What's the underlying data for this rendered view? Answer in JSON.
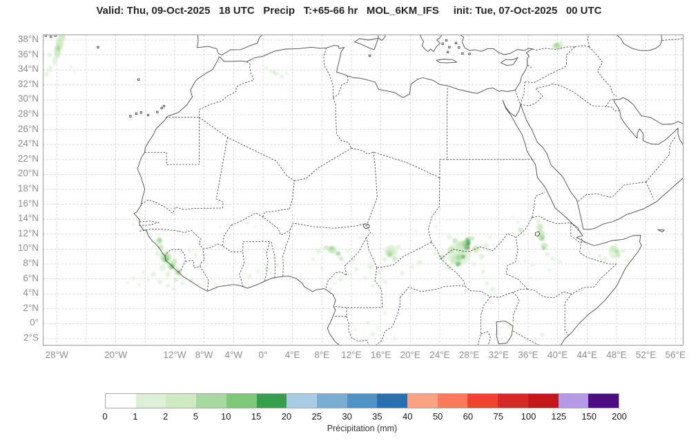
{
  "title": "Valid: Thu, 09-Oct-2025   18 UTC   Precip   T:+65-66 hr   MOL_6KM_IFS     init: Tue, 07-Oct-2025   00 UTC",
  "map": {
    "extent": {
      "lon_min": -29.9,
      "lon_max": 57.1,
      "lat_min": -2.93,
      "lat_max": 38.74
    },
    "grid": {
      "lon_start": -28,
      "lon_end": 56,
      "lon_step": 4,
      "lat_start": -2,
      "lat_end": 38,
      "lat_step": 2,
      "color": "#cfcfcf"
    },
    "frame_color": "#999999",
    "coast_color": "#474747",
    "border_color": "#3d3d3d",
    "x_ticks": [
      {
        "lon": -28,
        "label": "28°W"
      },
      {
        "lon": -20,
        "label": "20°W"
      },
      {
        "lon": -12,
        "label": "12°W"
      },
      {
        "lon": -8,
        "label": "8°W"
      },
      {
        "lon": -4,
        "label": "4°W"
      },
      {
        "lon": 0,
        "label": "0°"
      },
      {
        "lon": 4,
        "label": "4°E"
      },
      {
        "lon": 8,
        "label": "8°E"
      },
      {
        "lon": 12,
        "label": "12°E"
      },
      {
        "lon": 16,
        "label": "16°E"
      },
      {
        "lon": 20,
        "label": "20°E"
      },
      {
        "lon": 24,
        "label": "24°E"
      },
      {
        "lon": 28,
        "label": "28°E"
      },
      {
        "lon": 32,
        "label": "32°E"
      },
      {
        "lon": 36,
        "label": "36°E"
      },
      {
        "lon": 40,
        "label": "40°E"
      },
      {
        "lon": 44,
        "label": "44°E"
      },
      {
        "lon": 48,
        "label": "48°E"
      },
      {
        "lon": 52,
        "label": "52°E"
      },
      {
        "lon": 56,
        "label": "56°E"
      }
    ],
    "y_ticks": [
      {
        "lat": 38,
        "label": "38°N"
      },
      {
        "lat": 36,
        "label": "36°N"
      },
      {
        "lat": 34,
        "label": "34°N"
      },
      {
        "lat": 32,
        "label": "32°N"
      },
      {
        "lat": 30,
        "label": "30°N"
      },
      {
        "lat": 28,
        "label": "28°N"
      },
      {
        "lat": 26,
        "label": "26°N"
      },
      {
        "lat": 24,
        "label": "24°N"
      },
      {
        "lat": 22,
        "label": "22°N"
      },
      {
        "lat": 20,
        "label": "20°N"
      },
      {
        "lat": 18,
        "label": "18°N"
      },
      {
        "lat": 16,
        "label": "16°N"
      },
      {
        "lat": 14,
        "label": "14°N"
      },
      {
        "lat": 12,
        "label": "12°N"
      },
      {
        "lat": 10,
        "label": "10°N"
      },
      {
        "lat": 8,
        "label": "8°N"
      },
      {
        "lat": 6,
        "label": "6°N"
      },
      {
        "lat": 4,
        "label": "4°N"
      },
      {
        "lat": 2,
        "label": "2°N"
      },
      {
        "lat": 0,
        "label": "0°"
      },
      {
        "lat": -2,
        "label": "2°S"
      }
    ]
  },
  "colorbar": {
    "title": "Précipitation (mm)",
    "tick_labels": [
      "0",
      "1",
      "2",
      "5",
      "10",
      "15",
      "20",
      "25",
      "30",
      "35",
      "40",
      "50",
      "60",
      "75",
      "100",
      "125",
      "150",
      "200"
    ],
    "colors": [
      "#ffffff",
      "#dcf0d8",
      "#cfe9c3",
      "#a8d9a0",
      "#7cc878",
      "#379e4d",
      "#a9cbe4",
      "#7badd3",
      "#4f93c6",
      "#2970b1",
      "#fba285",
      "#fb7a5c",
      "#f0432f",
      "#d62a28",
      "#c5161b",
      "#b499e8",
      "#4c0c82"
    ]
  },
  "palette": {
    "p1": "#e2f2dc",
    "p2": "#cde9c1",
    "p3": "#a5d89d",
    "p4": "#78c474",
    "p5": "#3ca254",
    "blue": "#5b9bd5",
    "red": "#e03c2e"
  },
  "precip_blobs": [
    [
      -27.3,
      38.4,
      0.45,
      0.6,
      "p2"
    ],
    [
      -27.6,
      37.5,
      0.5,
      0.8,
      "p2"
    ],
    [
      -27.9,
      36.5,
      0.45,
      0.9,
      "p2"
    ],
    [
      -27.8,
      36.9,
      0.25,
      0.4,
      "p3"
    ],
    [
      -28.3,
      35.2,
      0.35,
      0.6,
      "p1"
    ],
    [
      -28.9,
      34.1,
      0.3,
      0.45,
      "p1"
    ],
    [
      -29.4,
      33.4,
      0.3,
      0.4,
      "p1"
    ],
    [
      -29.0,
      36.0,
      0.25,
      0.35,
      "p1"
    ],
    [
      -26.1,
      34.4,
      0.22,
      0.22,
      "p1"
    ],
    [
      -25.6,
      33.7,
      0.15,
      0.15,
      "p1"
    ],
    [
      0.4,
      34.3,
      0.25,
      0.2,
      "p1"
    ],
    [
      1.1,
      33.9,
      0.3,
      0.25,
      "p1"
    ],
    [
      1.8,
      33.5,
      0.35,
      0.3,
      "p1"
    ],
    [
      2.5,
      33.1,
      0.3,
      0.25,
      "p1"
    ],
    [
      1.5,
      33.7,
      0.2,
      0.2,
      "p2"
    ],
    [
      3.2,
      33.5,
      0.2,
      0.2,
      "p1"
    ],
    [
      -2.1,
      37.1,
      0.2,
      0.15,
      "p1"
    ],
    [
      40.0,
      37.2,
      0.7,
      0.5,
      "p2"
    ],
    [
      39.9,
      37.3,
      0.35,
      0.3,
      "p3"
    ],
    [
      40.5,
      37.6,
      0.3,
      0.25,
      "p1"
    ],
    [
      -16.6,
      15.9,
      0.15,
      0.15,
      "p1"
    ],
    [
      -16.7,
      14.8,
      0.2,
      0.2,
      "p1"
    ],
    [
      -16.9,
      13.8,
      0.22,
      0.2,
      "p1"
    ],
    [
      -16.4,
      12.9,
      0.2,
      0.2,
      "p1"
    ],
    [
      -15.9,
      12.2,
      0.3,
      0.25,
      "p1"
    ],
    [
      -17.6,
      13.3,
      0.2,
      0.2,
      "p1"
    ],
    [
      -3.4,
      14.0,
      0.2,
      0.15,
      "p1"
    ],
    [
      -2.1,
      13.5,
      0.25,
      0.2,
      "p1"
    ],
    [
      -1.1,
      13.0,
      0.2,
      0.15,
      "p1"
    ],
    [
      0.6,
      13.5,
      0.15,
      0.12,
      "p1"
    ],
    [
      -5.8,
      13.0,
      0.15,
      0.12,
      "p1"
    ],
    [
      -14.1,
      11.1,
      0.45,
      0.5,
      "p2"
    ],
    [
      -14.0,
      11.2,
      0.25,
      0.3,
      "p3"
    ],
    [
      -13.9,
      10.2,
      0.4,
      0.4,
      "p2"
    ],
    [
      -14.3,
      9.4,
      0.35,
      0.4,
      "p1"
    ],
    [
      -13.2,
      8.9,
      0.75,
      0.8,
      "p2"
    ],
    [
      -13.2,
      8.8,
      0.45,
      0.5,
      "p3"
    ],
    [
      -13.1,
      8.6,
      0.25,
      0.3,
      "p4"
    ],
    [
      -12.4,
      7.8,
      0.6,
      0.6,
      "p2"
    ],
    [
      -12.35,
      7.7,
      0.3,
      0.35,
      "p4"
    ],
    [
      -12.0,
      8.4,
      0.35,
      0.35,
      "p2"
    ],
    [
      -11.5,
      6.9,
      0.5,
      0.5,
      "p2"
    ],
    [
      -11.45,
      6.85,
      0.25,
      0.25,
      "p3"
    ],
    [
      -12.9,
      6.7,
      0.35,
      0.4,
      "p1"
    ],
    [
      -13.6,
      7.5,
      0.4,
      0.45,
      "p1"
    ],
    [
      -14.9,
      6.6,
      0.4,
      0.35,
      "p1"
    ],
    [
      -15.6,
      5.9,
      0.3,
      0.3,
      "p1"
    ],
    [
      -14.0,
      5.6,
      0.35,
      0.3,
      "p1"
    ],
    [
      -12.9,
      5.1,
      0.3,
      0.25,
      "p1"
    ],
    [
      -12.1,
      4.7,
      0.3,
      0.25,
      "p1"
    ],
    [
      -16.3,
      6.9,
      0.25,
      0.2,
      "p1"
    ],
    [
      -17.6,
      6.1,
      0.3,
      0.25,
      "p1"
    ],
    [
      -18.4,
      5.5,
      0.25,
      0.2,
      "p1"
    ],
    [
      -16.8,
      5.2,
      0.25,
      0.2,
      "p1"
    ],
    [
      -10.9,
      5.4,
      0.3,
      0.25,
      "p1"
    ],
    [
      -11.8,
      5.9,
      0.28,
      0.25,
      "p2"
    ],
    [
      -10.0,
      9.8,
      0.3,
      0.3,
      "p1"
    ],
    [
      -9.2,
      9.2,
      0.25,
      0.25,
      "p1"
    ],
    [
      -9.7,
      5.9,
      0.3,
      0.25,
      "p1"
    ],
    [
      -8.7,
      5.3,
      0.25,
      0.2,
      "p1"
    ],
    [
      -7.5,
      5.6,
      0.2,
      0.18,
      "p1"
    ],
    [
      -6.4,
      5.2,
      0.25,
      0.2,
      "p1"
    ],
    [
      -5.3,
      5.6,
      0.2,
      0.18,
      "p1"
    ],
    [
      -4.2,
      5.8,
      0.2,
      0.15,
      "p1"
    ],
    [
      -1.8,
      6.4,
      0.3,
      0.25,
      "p1"
    ],
    [
      -0.7,
      7.0,
      0.25,
      0.22,
      "p1"
    ],
    [
      0.4,
      7.4,
      0.3,
      0.25,
      "p1"
    ],
    [
      1.1,
      6.8,
      0.2,
      0.18,
      "p1"
    ],
    [
      2.0,
      7.9,
      0.3,
      0.25,
      "p1"
    ],
    [
      1.5,
      8.9,
      0.25,
      0.2,
      "p1"
    ],
    [
      0.3,
      9.8,
      0.2,
      0.15,
      "p1"
    ],
    [
      7.6,
      9.7,
      0.4,
      0.35,
      "p1"
    ],
    [
      8.6,
      10.2,
      0.35,
      0.3,
      "p2"
    ],
    [
      9.4,
      9.9,
      0.6,
      0.5,
      "p2"
    ],
    [
      9.3,
      10.1,
      0.3,
      0.3,
      "p3"
    ],
    [
      10.2,
      9.4,
      0.35,
      0.3,
      "p3"
    ],
    [
      10.6,
      8.7,
      0.3,
      0.3,
      "p2"
    ],
    [
      11.5,
      9.8,
      0.3,
      0.25,
      "p1"
    ],
    [
      12.3,
      8.5,
      0.3,
      0.25,
      "p1"
    ],
    [
      6.8,
      8.6,
      0.25,
      0.2,
      "p1"
    ],
    [
      8.0,
      7.4,
      0.25,
      0.2,
      "p1"
    ],
    [
      13.2,
      11.5,
      0.25,
      0.2,
      "p1"
    ],
    [
      9.1,
      4.6,
      0.3,
      0.25,
      "p1"
    ],
    [
      9.7,
      5.4,
      0.25,
      0.2,
      "p1"
    ],
    [
      10.5,
      5.9,
      0.3,
      0.25,
      "p1"
    ],
    [
      11.7,
      6.6,
      0.3,
      0.25,
      "p1"
    ],
    [
      12.7,
      7.3,
      0.3,
      0.3,
      "p1"
    ],
    [
      17.4,
      9.7,
      0.95,
      0.85,
      "p1"
    ],
    [
      17.3,
      9.6,
      0.6,
      0.55,
      "p2"
    ],
    [
      17.2,
      9.3,
      0.35,
      0.35,
      "p3"
    ],
    [
      17.9,
      8.7,
      0.35,
      0.3,
      "p2"
    ],
    [
      16.5,
      8.6,
      0.3,
      0.3,
      "p1"
    ],
    [
      18.4,
      10.3,
      0.35,
      0.3,
      "p1"
    ],
    [
      15.8,
      6.9,
      0.35,
      0.3,
      "p1"
    ],
    [
      14.6,
      7.6,
      0.4,
      0.3,
      "p1"
    ],
    [
      13.9,
      6.1,
      0.3,
      0.25,
      "p1"
    ],
    [
      14.9,
      5.1,
      0.25,
      0.2,
      "p1"
    ],
    [
      16.6,
      5.6,
      0.3,
      0.25,
      "p1"
    ],
    [
      18.9,
      6.8,
      0.3,
      0.3,
      "p1"
    ],
    [
      20.2,
      7.6,
      0.35,
      0.3,
      "p1"
    ],
    [
      21.3,
      8.2,
      0.4,
      0.35,
      "p1"
    ],
    [
      23.4,
      13.0,
      0.25,
      0.2,
      "p1"
    ],
    [
      20.8,
      12.4,
      0.2,
      0.15,
      "p1"
    ],
    [
      18.8,
      12.0,
      0.2,
      0.15,
      "p1"
    ],
    [
      26.6,
      9.3,
      1.7,
      1.5,
      "p1"
    ],
    [
      26.3,
      8.6,
      0.8,
      0.7,
      "p2"
    ],
    [
      26.9,
      10.2,
      0.7,
      0.9,
      "p2"
    ],
    [
      27.5,
      10.7,
      0.5,
      0.5,
      "p3"
    ],
    [
      27.8,
      11.2,
      0.35,
      0.35,
      "p4"
    ],
    [
      27.7,
      10.3,
      0.4,
      0.45,
      "p4"
    ],
    [
      27.9,
      10.8,
      0.25,
      0.3,
      "p5"
    ],
    [
      26.6,
      8.9,
      0.4,
      0.4,
      "p3"
    ],
    [
      26.5,
      8.0,
      0.35,
      0.3,
      "p4"
    ],
    [
      27.2,
      9.0,
      0.3,
      0.3,
      "p4"
    ],
    [
      28.3,
      11.4,
      0.4,
      0.35,
      "p2"
    ],
    [
      28.9,
      10.0,
      0.5,
      0.5,
      "p2"
    ],
    [
      29.7,
      9.0,
      0.4,
      0.4,
      "p1"
    ],
    [
      30.3,
      10.5,
      0.4,
      0.35,
      "p1"
    ],
    [
      25.2,
      7.6,
      0.4,
      0.35,
      "p1"
    ],
    [
      24.3,
      8.9,
      0.45,
      0.4,
      "p2"
    ],
    [
      23.4,
      9.4,
      0.3,
      0.3,
      "p1"
    ],
    [
      25.6,
      9.9,
      0.5,
      0.5,
      "p2"
    ],
    [
      26.1,
      11.1,
      0.4,
      0.4,
      "p2"
    ],
    [
      25.3,
      11.6,
      0.3,
      0.3,
      "p1"
    ],
    [
      28.6,
      8.0,
      0.35,
      0.3,
      "p1"
    ],
    [
      29.9,
      7.0,
      0.3,
      0.25,
      "p1"
    ],
    [
      30.8,
      11.6,
      0.3,
      0.25,
      "p1"
    ],
    [
      27.9,
      10.15,
      0.14,
      0.14,
      "red"
    ],
    [
      27.55,
      10.05,
      0.12,
      0.12,
      "blue"
    ],
    [
      28.0,
      11.25,
      0.1,
      0.1,
      "blue"
    ],
    [
      27.15,
      8.95,
      0.11,
      0.11,
      "blue"
    ],
    [
      26.4,
      7.75,
      0.1,
      0.1,
      "blue"
    ],
    [
      27.25,
      9.05,
      0.08,
      0.08,
      "red"
    ],
    [
      31.2,
      4.6,
      0.4,
      0.35,
      "p1"
    ],
    [
      30.4,
      5.4,
      0.3,
      0.25,
      "p1"
    ],
    [
      33.5,
      -0.4,
      0.3,
      0.3,
      "p1"
    ],
    [
      34.1,
      0.4,
      0.2,
      0.2,
      "p1"
    ],
    [
      31.8,
      -1.2,
      0.25,
      0.2,
      "p1"
    ],
    [
      14.2,
      0.1,
      0.3,
      0.25,
      "p1"
    ],
    [
      14.9,
      -1.4,
      0.3,
      0.25,
      "p1"
    ],
    [
      13.6,
      -2.3,
      0.25,
      0.2,
      "p1"
    ],
    [
      15.6,
      -0.6,
      0.2,
      0.18,
      "p1"
    ],
    [
      16.6,
      1.4,
      0.25,
      0.2,
      "p1"
    ],
    [
      17.9,
      -2.0,
      0.25,
      0.2,
      "p1"
    ],
    [
      12.5,
      -0.8,
      0.2,
      0.18,
      "p1"
    ],
    [
      34.9,
      12.6,
      0.35,
      0.3,
      "p1"
    ],
    [
      35.0,
      12.5,
      0.18,
      0.15,
      "p3"
    ],
    [
      34.6,
      13.6,
      0.25,
      0.2,
      "p1"
    ],
    [
      33.9,
      14.3,
      0.2,
      0.15,
      "p1"
    ],
    [
      37.6,
      12.9,
      0.45,
      0.5,
      "p2"
    ],
    [
      37.8,
      11.8,
      0.5,
      0.7,
      "p2"
    ],
    [
      37.9,
      11.5,
      0.3,
      0.4,
      "p3"
    ],
    [
      38.2,
      10.4,
      0.45,
      0.45,
      "p2"
    ],
    [
      38.1,
      10.1,
      0.25,
      0.25,
      "p3"
    ],
    [
      37.4,
      13.7,
      0.3,
      0.3,
      "p1"
    ],
    [
      38.6,
      9.3,
      0.35,
      0.3,
      "p1"
    ],
    [
      39.4,
      8.7,
      0.4,
      0.3,
      "p1"
    ],
    [
      40.3,
      8.3,
      0.3,
      0.25,
      "p1"
    ],
    [
      36.6,
      7.9,
      0.3,
      0.25,
      "p1"
    ],
    [
      35.6,
      8.4,
      0.25,
      0.2,
      "p1"
    ],
    [
      34.8,
      8.1,
      0.22,
      0.2,
      "p1"
    ],
    [
      36.3,
      6.1,
      0.25,
      0.2,
      "p1"
    ],
    [
      35.7,
      5.3,
      0.2,
      0.18,
      "p1"
    ],
    [
      38.9,
      7.2,
      0.25,
      0.2,
      "p1"
    ],
    [
      47.7,
      9.6,
      0.8,
      0.9,
      "p1"
    ],
    [
      47.5,
      10.0,
      0.4,
      0.4,
      "p2"
    ],
    [
      48.2,
      9.2,
      0.35,
      0.35,
      "p2"
    ],
    [
      48.0,
      9.7,
      0.25,
      0.25,
      "p3"
    ],
    [
      48.9,
      9.8,
      0.3,
      0.3,
      "p1"
    ],
    [
      46.4,
      8.6,
      0.35,
      0.3,
      "p1"
    ],
    [
      45.7,
      9.1,
      0.3,
      0.25,
      "p1"
    ],
    [
      49.4,
      8.5,
      0.3,
      0.25,
      "p1"
    ],
    [
      44.3,
      9.5,
      0.25,
      0.2,
      "p1"
    ],
    [
      37.9,
      -1.5,
      0.3,
      0.25,
      "p1"
    ],
    [
      37.1,
      -2.1,
      0.25,
      0.2,
      "p1"
    ]
  ]
}
